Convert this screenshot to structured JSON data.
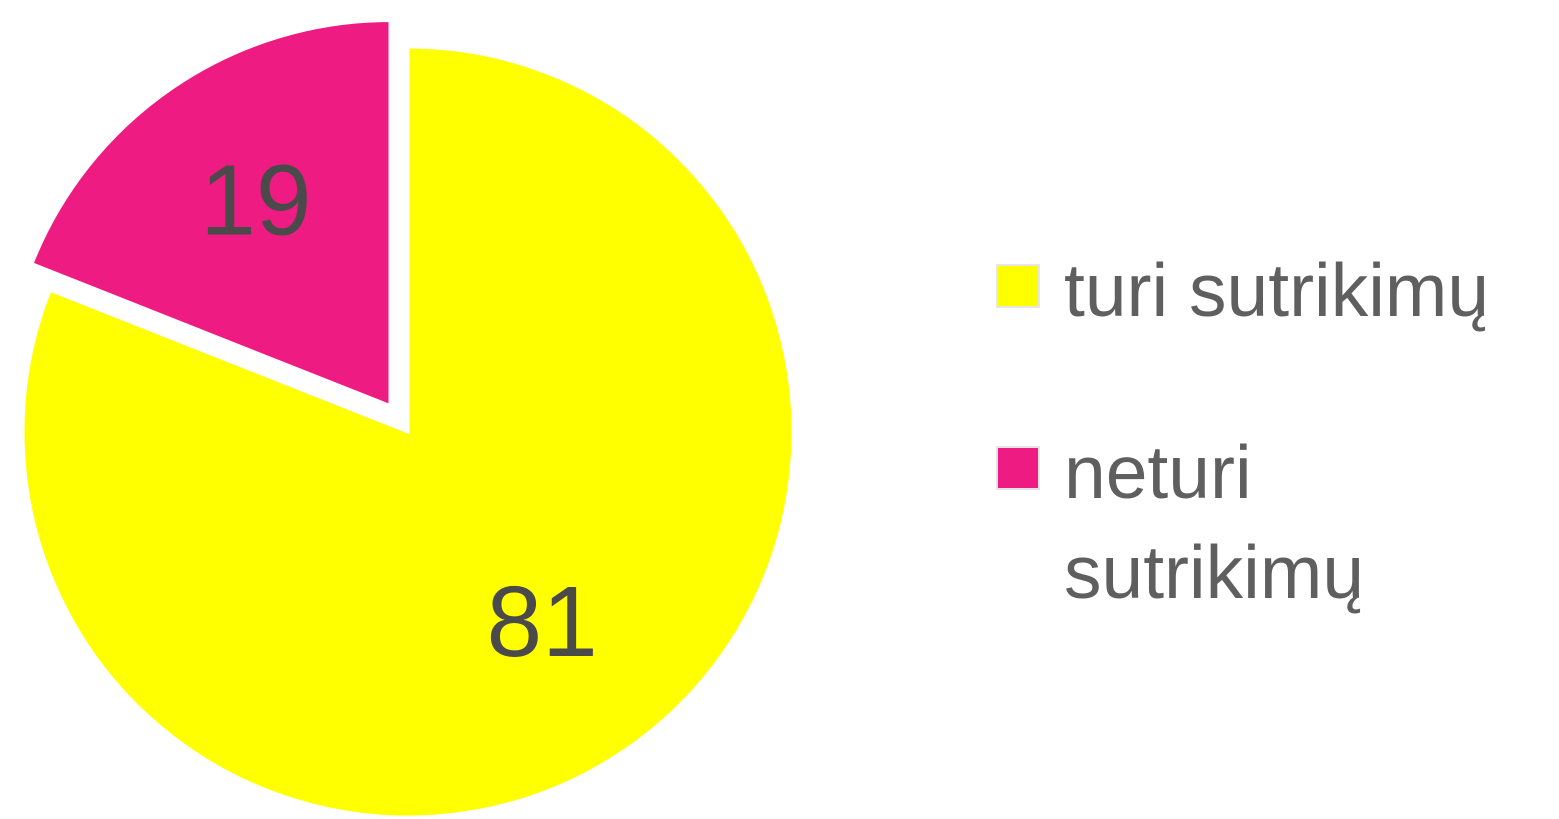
{
  "chart_data": {
    "type": "pie",
    "slices": [
      {
        "label": "turi sutrikimų",
        "value": 81,
        "display_value": "81",
        "color": "#ffff00",
        "exploded": false
      },
      {
        "label": "neturi sutrikimų",
        "value": 19,
        "display_value": "19",
        "color": "#ed1b82",
        "exploded": true
      }
    ],
    "start_angle": "12 o'clock",
    "direction": "clockwise",
    "legend_position": "right",
    "label_color": "#4a4a4a",
    "legend_text_color": "#5f5f5f"
  }
}
